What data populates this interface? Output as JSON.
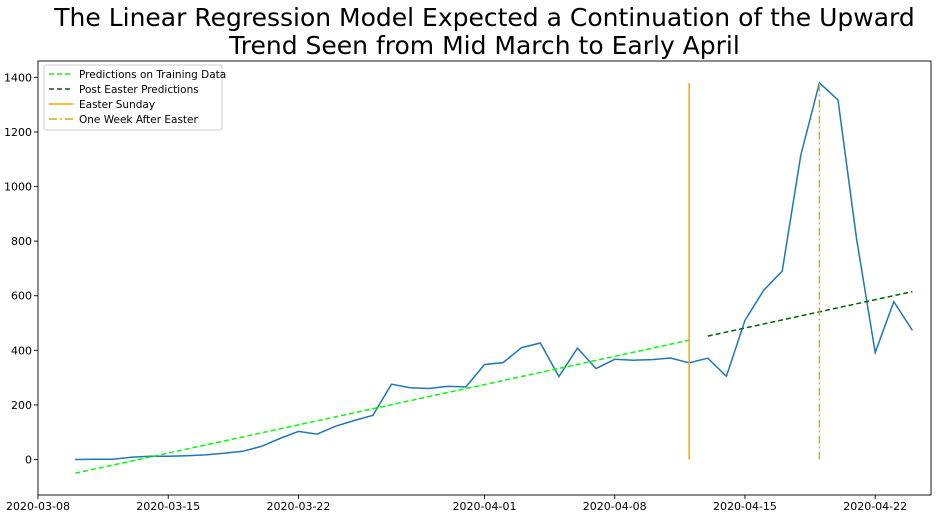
{
  "chart_data": {
    "type": "line",
    "title": [
      "The Linear Regression Model Expected a Continuation of the Upward",
      "Trend Seen from Mid March to Early April"
    ],
    "xlabel": "",
    "ylabel": "",
    "x_axis": {
      "type": "date",
      "range": [
        "2020-03-08",
        "2020-04-25"
      ],
      "ticks": [
        "2020-03-08",
        "2020-03-15",
        "2020-03-22",
        "2020-04-01",
        "2020-04-08",
        "2020-04-15",
        "2020-04-22"
      ]
    },
    "y_axis": {
      "range": [
        -130,
        1460
      ],
      "ticks": [
        0,
        200,
        400,
        600,
        800,
        1000,
        1200,
        1400
      ]
    },
    "grid": false,
    "legend_position": "upper-left",
    "legend": [
      {
        "label": "Predictions on Training Data",
        "color": "#00ff00",
        "style": "dashed"
      },
      {
        "label": "Post Easter Predictions",
        "color": "#006400",
        "style": "dashed"
      },
      {
        "label": "Easter Sunday",
        "color": "#ffa500",
        "style": "solid"
      },
      {
        "label": "One Week After Easter",
        "color": "#daa520",
        "style": "dashdot"
      }
    ],
    "series": [
      {
        "color": "#1f77b4",
        "style": "solid",
        "points": [
          [
            "2020-03-10",
            0
          ],
          [
            "2020-03-11",
            1
          ],
          [
            "2020-03-12",
            1
          ],
          [
            "2020-03-13",
            8
          ],
          [
            "2020-03-14",
            12
          ],
          [
            "2020-03-15",
            12
          ],
          [
            "2020-03-16",
            14
          ],
          [
            "2020-03-17",
            17
          ],
          [
            "2020-03-18",
            23
          ],
          [
            "2020-03-19",
            30
          ],
          [
            "2020-03-20",
            48
          ],
          [
            "2020-03-21",
            77
          ],
          [
            "2020-03-22",
            103
          ],
          [
            "2020-03-23",
            93
          ],
          [
            "2020-03-24",
            122
          ],
          [
            "2020-03-25",
            143
          ],
          [
            "2020-03-26",
            162
          ],
          [
            "2020-03-27",
            276
          ],
          [
            "2020-03-28",
            263
          ],
          [
            "2020-03-29",
            260
          ],
          [
            "2020-03-30",
            268
          ],
          [
            "2020-03-31",
            266
          ],
          [
            "2020-04-01",
            348
          ],
          [
            "2020-04-02",
            355
          ],
          [
            "2020-04-03",
            410
          ],
          [
            "2020-04-04",
            427
          ],
          [
            "2020-04-05",
            304
          ],
          [
            "2020-04-06",
            408
          ],
          [
            "2020-04-07",
            333
          ],
          [
            "2020-04-08",
            367
          ],
          [
            "2020-04-09",
            364
          ],
          [
            "2020-04-10",
            366
          ],
          [
            "2020-04-11",
            372
          ],
          [
            "2020-04-12",
            354
          ],
          [
            "2020-04-13",
            371
          ],
          [
            "2020-04-14",
            305
          ],
          [
            "2020-04-15",
            510
          ],
          [
            "2020-04-16",
            620
          ],
          [
            "2020-04-17",
            690
          ],
          [
            "2020-04-18",
            1115
          ],
          [
            "2020-04-19",
            1380
          ],
          [
            "2020-04-20",
            1317
          ],
          [
            "2020-04-21",
            808
          ],
          [
            "2020-04-22",
            392
          ],
          [
            "2020-04-23",
            578
          ],
          [
            "2020-04-24",
            473
          ]
        ]
      },
      {
        "name": "Predictions on Training Data",
        "color": "#00ff00",
        "style": "dashed",
        "points": [
          [
            "2020-03-10",
            -50
          ],
          [
            "2020-04-12",
            437
          ]
        ]
      },
      {
        "name": "Post Easter Predictions",
        "color": "#006400",
        "style": "dashed",
        "points": [
          [
            "2020-04-13",
            452
          ],
          [
            "2020-04-24",
            615
          ]
        ]
      }
    ],
    "vlines": [
      {
        "name": "Easter Sunday",
        "x": "2020-04-12",
        "ymin": 0,
        "ymax": 1380,
        "color": "#ffa500",
        "style": "solid"
      },
      {
        "name": "One Week After Easter",
        "x": "2020-04-19",
        "ymin": 0,
        "ymax": 1380,
        "color": "#daa520",
        "style": "dashdot"
      }
    ]
  }
}
